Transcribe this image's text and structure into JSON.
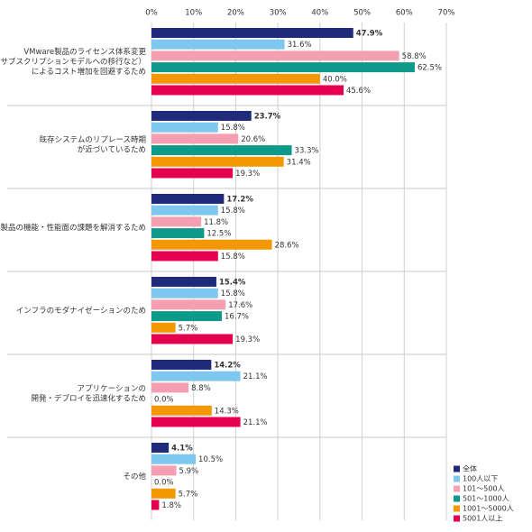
{
  "chart_data": {
    "type": "bar",
    "orientation": "horizontal",
    "categories": [
      "VMware製品のライセンス体系変更\n（サブスクリプションモデルへの移行など）\nによるコスト増加を回避するため",
      "既存システムのリプレース時期\nが近づいているため",
      "製品の機能・性能面の課題を解消するため",
      "インフラのモダナイゼーションのため",
      "アプリケーションの\n開発・デプロイを迅速化するため",
      "その他"
    ],
    "series": [
      {
        "name": "全体",
        "color": "#1f2a7a",
        "values": [
          47.9,
          23.7,
          17.2,
          15.4,
          14.2,
          4.1
        ],
        "value_labels": [
          "47.9%",
          "23.7%",
          "17.2%",
          "15.4%",
          "14.2%",
          "4.1%"
        ]
      },
      {
        "name": "100人以下",
        "color": "#7ec8f0",
        "values": [
          31.6,
          15.8,
          15.8,
          15.8,
          21.1,
          10.5
        ],
        "value_labels": [
          "31.6%",
          "15.8%",
          "15.8%",
          "15.8%",
          "21.1%",
          "10.5%"
        ]
      },
      {
        "name": "101〜500人",
        "color": "#f4a0b0",
        "values": [
          58.8,
          20.6,
          11.8,
          17.6,
          8.8,
          5.9
        ],
        "value_labels": [
          "58.8%",
          "20.6%",
          "11.8%",
          "17.6%",
          "8.8%",
          "5.9%"
        ]
      },
      {
        "name": "501〜1000人",
        "color": "#0e9a8a",
        "values": [
          62.5,
          33.3,
          12.5,
          16.7,
          0.0,
          0.0
        ],
        "value_labels": [
          "62.5%",
          "33.3%",
          "12.5%",
          "16.7%",
          "0.0%",
          "0.0%"
        ]
      },
      {
        "name": "1001〜5000人",
        "color": "#f39800",
        "values": [
          40.0,
          31.4,
          28.6,
          5.7,
          14.3,
          5.7
        ],
        "value_labels": [
          "40.0%",
          "31.4%",
          "28.6%",
          "5.7%",
          "14.3%",
          "5.7%"
        ]
      },
      {
        "name": "5001人以上",
        "color": "#e5004f",
        "values": [
          45.6,
          19.3,
          15.8,
          19.3,
          21.1,
          1.8
        ],
        "value_labels": [
          "45.6%",
          "19.3%",
          "15.8%",
          "19.3%",
          "21.1%",
          "1.8%"
        ]
      }
    ],
    "xlim": [
      0,
      70
    ],
    "xticks": [
      {
        "value": 0,
        "label": "0%"
      },
      {
        "value": 10,
        "label": "10%"
      },
      {
        "value": 20,
        "label": "20%"
      },
      {
        "value": 30,
        "label": "30%"
      },
      {
        "value": 40,
        "label": "40%"
      },
      {
        "value": 50,
        "label": "50%"
      },
      {
        "value": 60,
        "label": "60%"
      },
      {
        "value": 70,
        "label": "70%"
      }
    ],
    "grid": true,
    "legend": "bottom-right"
  }
}
